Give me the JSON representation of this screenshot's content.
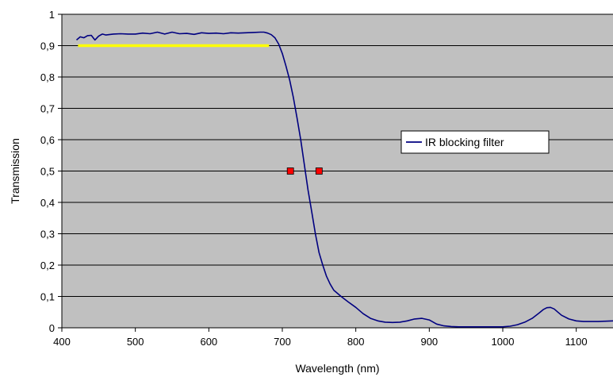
{
  "chart_data": {
    "type": "line",
    "title": "",
    "xlabel": "Wavelength (nm)",
    "ylabel": "Transmission",
    "xlim": [
      400,
      1150
    ],
    "ylim": [
      0,
      1
    ],
    "x_ticks": [
      400,
      500,
      600,
      700,
      800,
      900,
      1000,
      1100
    ],
    "x_tick_labels": [
      "400",
      "500",
      "600",
      "700",
      "800",
      "900",
      "1000",
      "1100"
    ],
    "y_ticks": [
      0,
      0.1,
      0.2,
      0.3,
      0.4,
      0.5,
      0.6,
      0.7,
      0.8,
      0.9,
      1
    ],
    "y_tick_labels": [
      "0",
      "0,1",
      "0,2",
      "0,3",
      "0,4",
      "0,5",
      "0,6",
      "0,7",
      "0,8",
      "0,9",
      "1"
    ],
    "grid": "horizontal",
    "plot_background": "#c0c0c0",
    "legend_placement": "right-middle",
    "series": [
      {
        "name": "IR blocking filter",
        "color": "#000080",
        "x": [
          420,
          425,
          430,
          435,
          440,
          445,
          450,
          455,
          460,
          470,
          480,
          490,
          500,
          510,
          520,
          530,
          540,
          550,
          560,
          570,
          580,
          590,
          600,
          610,
          620,
          630,
          640,
          650,
          660,
          670,
          675,
          680,
          685,
          690,
          695,
          700,
          705,
          710,
          715,
          720,
          725,
          730,
          735,
          740,
          745,
          750,
          755,
          760,
          765,
          770,
          780,
          790,
          800,
          810,
          820,
          830,
          840,
          850,
          860,
          870,
          880,
          890,
          900,
          910,
          920,
          930,
          940,
          960,
          980,
          1000,
          1010,
          1020,
          1030,
          1040,
          1050,
          1055,
          1060,
          1065,
          1070,
          1075,
          1080,
          1090,
          1100,
          1110,
          1120,
          1130,
          1140,
          1150
        ],
        "y": [
          0.918,
          0.928,
          0.925,
          0.932,
          0.933,
          0.918,
          0.93,
          0.937,
          0.934,
          0.937,
          0.938,
          0.937,
          0.937,
          0.94,
          0.938,
          0.943,
          0.937,
          0.943,
          0.938,
          0.939,
          0.936,
          0.941,
          0.939,
          0.94,
          0.938,
          0.941,
          0.94,
          0.941,
          0.942,
          0.943,
          0.943,
          0.94,
          0.935,
          0.925,
          0.905,
          0.875,
          0.835,
          0.79,
          0.735,
          0.67,
          0.6,
          0.52,
          0.44,
          0.37,
          0.3,
          0.24,
          0.2,
          0.165,
          0.14,
          0.12,
          0.1,
          0.082,
          0.065,
          0.045,
          0.03,
          0.022,
          0.018,
          0.017,
          0.018,
          0.022,
          0.028,
          0.03,
          0.025,
          0.012,
          0.006,
          0.004,
          0.003,
          0.003,
          0.003,
          0.003,
          0.005,
          0.01,
          0.018,
          0.03,
          0.048,
          0.058,
          0.064,
          0.065,
          0.06,
          0.05,
          0.04,
          0.028,
          0.022,
          0.02,
          0.02,
          0.02,
          0.021,
          0.022
        ]
      },
      {
        "color": "#ffff00",
        "x": [
          422,
          682
        ],
        "y": [
          0.9,
          0.9
        ]
      }
    ],
    "markers": {
      "color": "#ff0000",
      "x": [
        711,
        750
      ],
      "y": [
        0.5,
        0.5
      ]
    }
  }
}
